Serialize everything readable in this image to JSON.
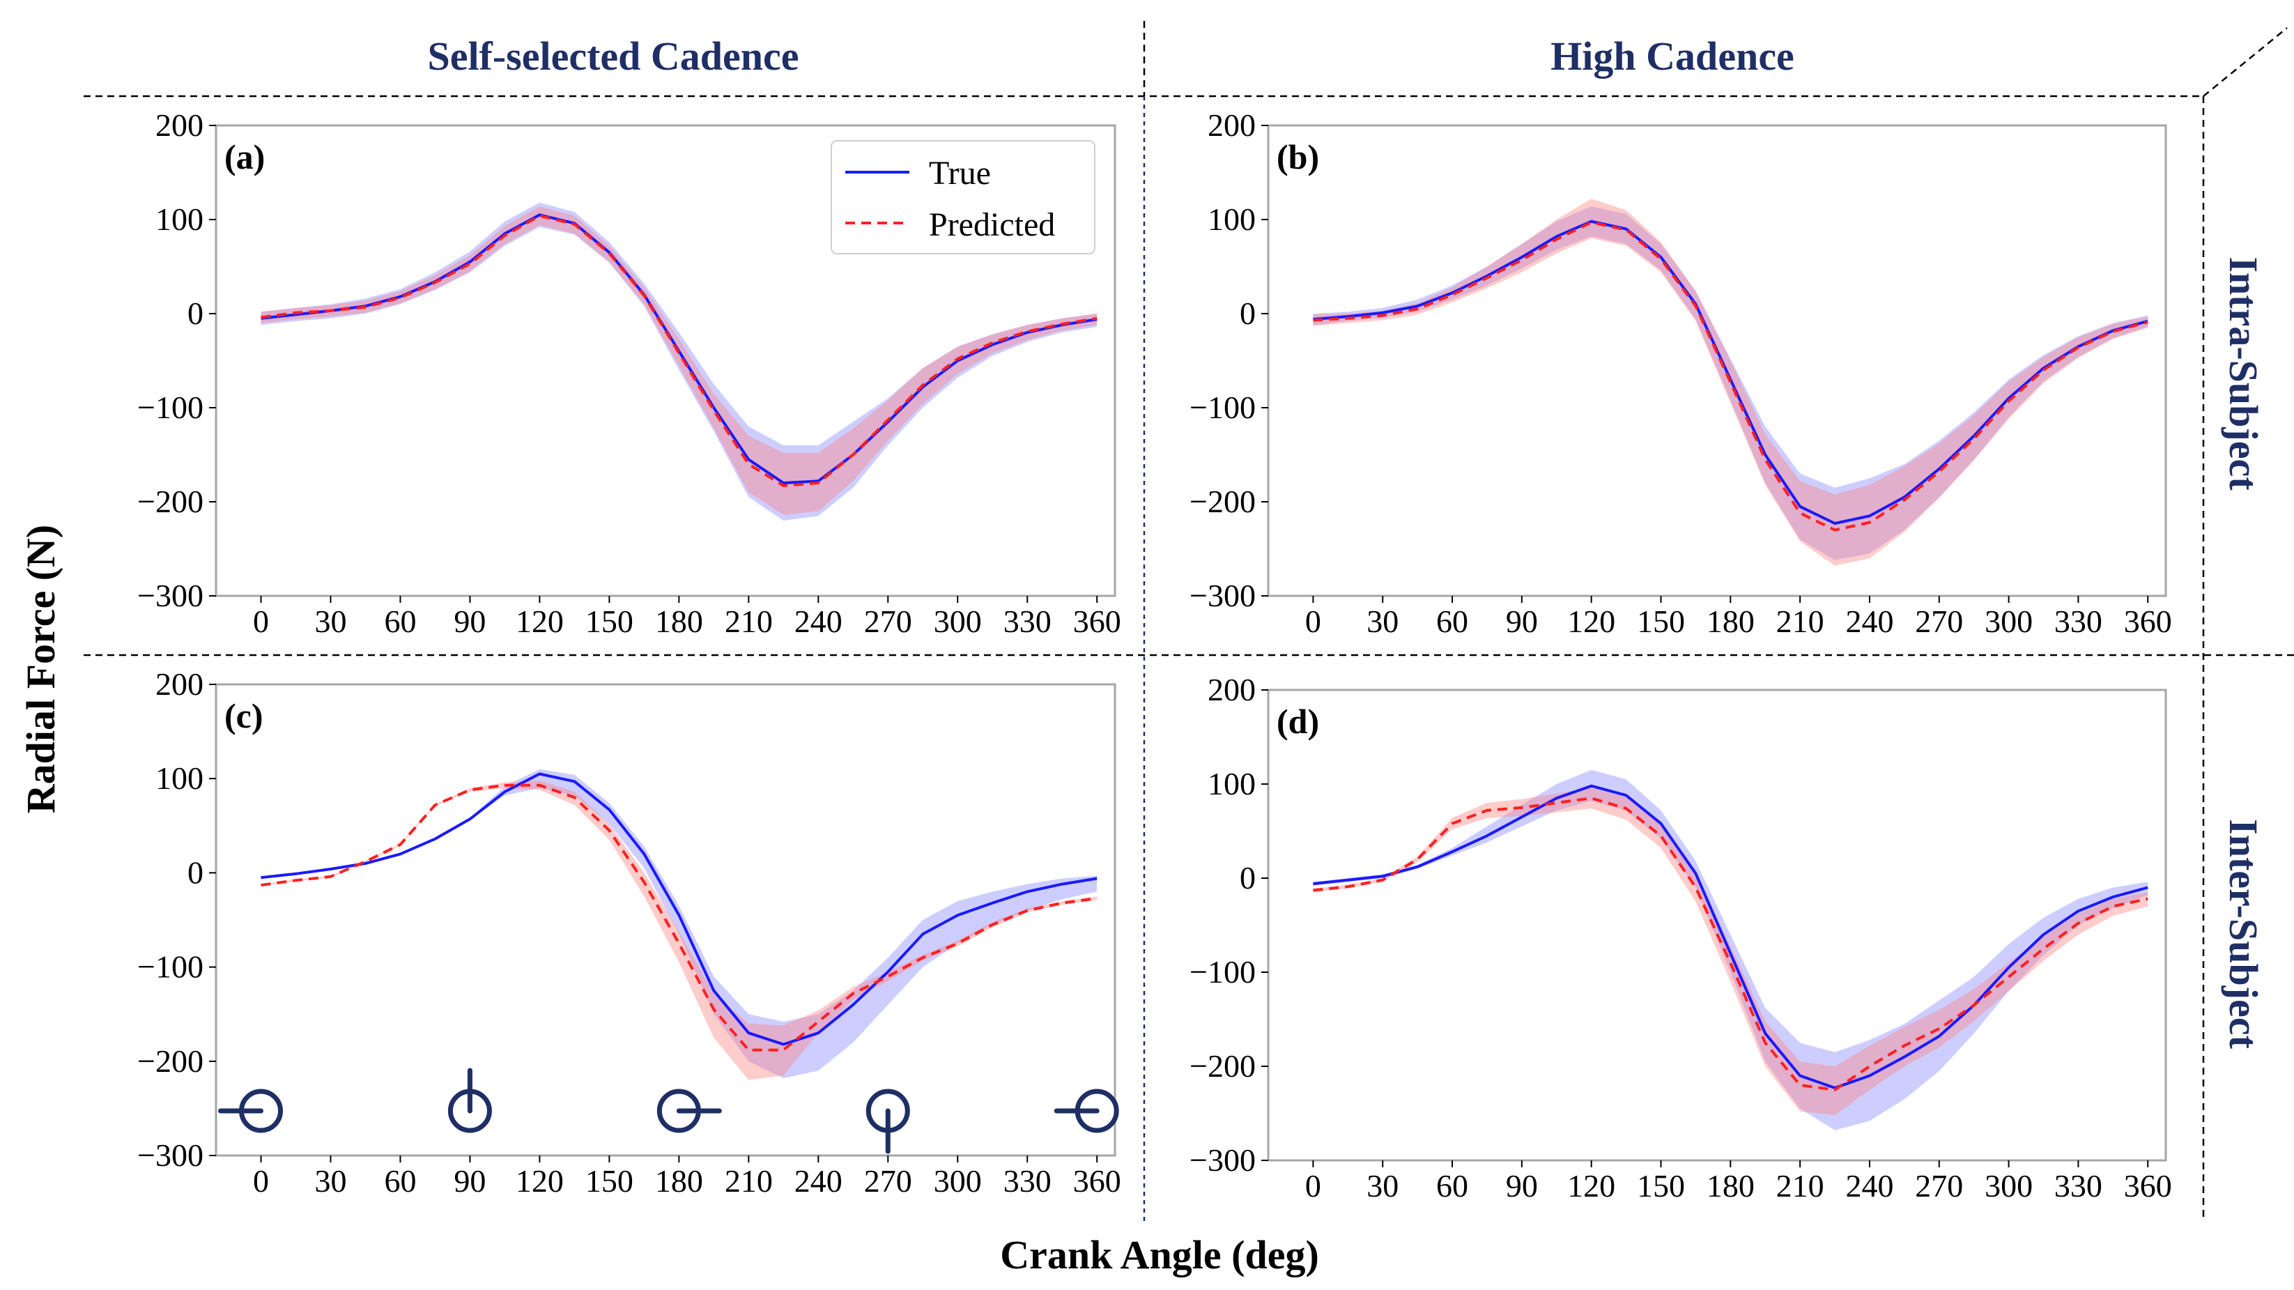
{
  "figure": {
    "col_headers": [
      "Self-selected Cadence",
      "High Cadence"
    ],
    "row_headers": [
      "Intra-Subject",
      "Inter-Subject"
    ],
    "ylabel": "Radial Force (N)",
    "xlabel": "Crank Angle (deg)",
    "legend": {
      "true_label": "True",
      "predicted_label": "Predicted"
    }
  },
  "colors": {
    "true": "#1a1aff",
    "predicted": "#ff2020",
    "true_band": "#6f72ff",
    "predicted_band": "#ff8080",
    "header": "#1f2f66"
  },
  "chart_data": [
    {
      "type": "line",
      "panel_label": "(a)",
      "xlim": [
        0,
        360
      ],
      "ylim": [
        -300,
        200
      ],
      "xticks": [
        0,
        30,
        60,
        90,
        120,
        150,
        180,
        210,
        240,
        270,
        300,
        330,
        360
      ],
      "yticks": [
        200,
        100,
        0,
        -100,
        -200,
        -300
      ],
      "legend_position": "top-right",
      "x": [
        0,
        15,
        30,
        45,
        60,
        75,
        90,
        105,
        120,
        135,
        150,
        165,
        180,
        195,
        210,
        225,
        240,
        255,
        270,
        285,
        300,
        315,
        330,
        345,
        360
      ],
      "series": [
        {
          "name": "True",
          "style": "solid",
          "values": [
            -5,
            -1,
            3,
            8,
            18,
            34,
            55,
            85,
            105,
            96,
            65,
            20,
            -40,
            -100,
            -155,
            -180,
            -178,
            -150,
            -115,
            -78,
            -50,
            -33,
            -20,
            -12,
            -6
          ],
          "band_lower": [
            -12,
            -8,
            -5,
            0,
            10,
            25,
            44,
            72,
            92,
            84,
            54,
            8,
            -60,
            -125,
            -195,
            -220,
            -215,
            -185,
            -140,
            -100,
            -68,
            -45,
            -30,
            -20,
            -14
          ],
          "band_upper": [
            2,
            6,
            10,
            16,
            26,
            44,
            66,
            98,
            118,
            108,
            76,
            32,
            -20,
            -75,
            -120,
            -140,
            -140,
            -115,
            -90,
            -58,
            -35,
            -22,
            -12,
            -5,
            0
          ]
        },
        {
          "name": "Predicted",
          "style": "dashed",
          "values": [
            -4,
            1,
            3,
            7,
            17,
            33,
            53,
            83,
            104,
            95,
            64,
            19,
            -42,
            -103,
            -160,
            -183,
            -180,
            -150,
            -113,
            -76,
            -48,
            -31,
            -19,
            -11,
            -5
          ],
          "band_lower": [
            -10,
            -6,
            -3,
            1,
            11,
            26,
            45,
            74,
            94,
            85,
            55,
            10,
            -56,
            -122,
            -190,
            -214,
            -210,
            -178,
            -135,
            -96,
            -64,
            -42,
            -28,
            -18,
            -12
          ],
          "band_upper": [
            2,
            6,
            9,
            14,
            24,
            41,
            62,
            93,
            114,
            104,
            72,
            28,
            -27,
            -85,
            -130,
            -148,
            -148,
            -122,
            -92,
            -58,
            -35,
            -22,
            -12,
            -5,
            0
          ]
        }
      ]
    },
    {
      "type": "line",
      "panel_label": "(b)",
      "xlim": [
        0,
        360
      ],
      "ylim": [
        -300,
        200
      ],
      "xticks": [
        0,
        30,
        60,
        90,
        120,
        150,
        180,
        210,
        240,
        270,
        300,
        330,
        360
      ],
      "yticks": [
        200,
        100,
        0,
        -100,
        -200,
        -300
      ],
      "x": [
        0,
        15,
        30,
        45,
        60,
        75,
        90,
        105,
        120,
        135,
        150,
        165,
        180,
        195,
        210,
        225,
        240,
        255,
        270,
        285,
        300,
        315,
        330,
        345,
        360
      ],
      "series": [
        {
          "name": "True",
          "style": "solid",
          "values": [
            -6,
            -3,
            1,
            8,
            22,
            40,
            60,
            82,
            98,
            90,
            60,
            10,
            -70,
            -150,
            -205,
            -223,
            -215,
            -195,
            -165,
            -130,
            -90,
            -58,
            -35,
            -18,
            -8
          ],
          "band_lower": [
            -12,
            -8,
            -4,
            2,
            15,
            30,
            48,
            68,
            82,
            74,
            46,
            -6,
            -92,
            -180,
            -240,
            -262,
            -255,
            -230,
            -195,
            -155,
            -110,
            -72,
            -46,
            -26,
            -14
          ],
          "band_upper": [
            0,
            2,
            6,
            15,
            30,
            50,
            74,
            98,
            114,
            106,
            74,
            24,
            -48,
            -120,
            -170,
            -185,
            -175,
            -160,
            -135,
            -105,
            -70,
            -44,
            -24,
            -10,
            -2
          ]
        },
        {
          "name": "Predicted",
          "style": "dashed",
          "values": [
            -7,
            -5,
            -2,
            5,
            20,
            38,
            57,
            79,
            97,
            89,
            58,
            8,
            -73,
            -155,
            -212,
            -230,
            -222,
            -198,
            -168,
            -133,
            -93,
            -60,
            -36,
            -19,
            -9
          ],
          "band_lower": [
            -13,
            -10,
            -7,
            -1,
            12,
            27,
            44,
            64,
            80,
            72,
            44,
            -8,
            -95,
            -182,
            -242,
            -268,
            -260,
            -232,
            -196,
            -156,
            -112,
            -74,
            -47,
            -27,
            -15
          ],
          "band_upper": [
            -1,
            0,
            3,
            11,
            28,
            50,
            74,
            100,
            122,
            110,
            76,
            24,
            -50,
            -128,
            -178,
            -192,
            -182,
            -162,
            -138,
            -108,
            -72,
            -46,
            -25,
            -11,
            -3
          ]
        }
      ]
    },
    {
      "type": "line",
      "panel_label": "(c)",
      "xlim": [
        0,
        360
      ],
      "ylim": [
        -300,
        200
      ],
      "xticks": [
        0,
        30,
        60,
        90,
        120,
        150,
        180,
        210,
        240,
        270,
        300,
        330,
        360
      ],
      "yticks": [
        200,
        100,
        0,
        -100,
        -200,
        -300
      ],
      "x": [
        0,
        15,
        30,
        45,
        60,
        75,
        90,
        105,
        120,
        135,
        150,
        165,
        180,
        195,
        210,
        225,
        240,
        255,
        270,
        285,
        300,
        315,
        330,
        345,
        360
      ],
      "series": [
        {
          "name": "True",
          "style": "solid",
          "values": [
            -5,
            -1,
            4,
            10,
            20,
            36,
            57,
            86,
            105,
            97,
            67,
            20,
            -45,
            -125,
            -170,
            -182,
            -170,
            -140,
            -105,
            -65,
            -45,
            -32,
            -20,
            -12,
            -6
          ],
          "band_lower": [
            -6,
            -2,
            3,
            9,
            19,
            35,
            56,
            82,
            90,
            82,
            52,
            5,
            -65,
            -150,
            -200,
            -218,
            -210,
            -180,
            -140,
            -100,
            -75,
            -55,
            -40,
            -28,
            -20
          ],
          "band_upper": [
            -4,
            0,
            5,
            11,
            21,
            37,
            58,
            92,
            110,
            104,
            74,
            28,
            -35,
            -110,
            -150,
            -158,
            -150,
            -125,
            -90,
            -50,
            -30,
            -20,
            -12,
            -6,
            -3
          ]
        },
        {
          "name": "Predicted",
          "style": "dashed",
          "values": [
            -13,
            -8,
            -4,
            12,
            30,
            72,
            88,
            93,
            93,
            80,
            45,
            -10,
            -75,
            -145,
            -188,
            -188,
            -158,
            -128,
            -110,
            -90,
            -75,
            -55,
            -40,
            -32,
            -27
          ],
          "band_lower": [
            -14,
            -9,
            -5,
            11,
            29,
            71,
            86,
            90,
            88,
            72,
            35,
            -25,
            -95,
            -175,
            -220,
            -215,
            -170,
            -135,
            -115,
            -93,
            -78,
            -58,
            -42,
            -34,
            -29
          ],
          "band_upper": [
            -12,
            -7,
            -3,
            13,
            31,
            73,
            90,
            96,
            98,
            86,
            52,
            0,
            -62,
            -128,
            -160,
            -162,
            -146,
            -121,
            -105,
            -87,
            -72,
            -52,
            -38,
            -30,
            -25
          ]
        }
      ],
      "annotations": [
        "crank-position-0",
        "crank-position-90",
        "crank-position-180",
        "crank-position-270",
        "crank-position-360"
      ]
    },
    {
      "type": "line",
      "panel_label": "(d)",
      "xlim": [
        0,
        360
      ],
      "ylim": [
        -300,
        200
      ],
      "xticks": [
        0,
        30,
        60,
        90,
        120,
        150,
        180,
        210,
        240,
        270,
        300,
        330,
        360
      ],
      "yticks": [
        200,
        100,
        0,
        -100,
        -200,
        -300
      ],
      "x": [
        0,
        15,
        30,
        45,
        60,
        75,
        90,
        105,
        120,
        135,
        150,
        165,
        180,
        195,
        210,
        225,
        240,
        255,
        270,
        285,
        300,
        315,
        330,
        345,
        360
      ],
      "series": [
        {
          "name": "True",
          "style": "solid",
          "values": [
            -6,
            -2,
            2,
            12,
            28,
            45,
            65,
            85,
            98,
            88,
            58,
            5,
            -80,
            -165,
            -210,
            -223,
            -210,
            -190,
            -168,
            -135,
            -95,
            -60,
            -35,
            -20,
            -10
          ],
          "band_lower": [
            -8,
            -4,
            0,
            10,
            24,
            38,
            55,
            72,
            82,
            72,
            42,
            -10,
            -100,
            -195,
            -245,
            -268,
            -258,
            -235,
            -205,
            -165,
            -120,
            -82,
            -50,
            -32,
            -18
          ],
          "band_upper": [
            -4,
            0,
            4,
            14,
            32,
            55,
            78,
            100,
            115,
            105,
            72,
            18,
            -60,
            -138,
            -175,
            -185,
            -172,
            -155,
            -130,
            -105,
            -70,
            -42,
            -22,
            -10,
            -4
          ]
        },
        {
          "name": "Predicted",
          "style": "dashed",
          "values": [
            -13,
            -9,
            -2,
            20,
            58,
            72,
            75,
            80,
            85,
            74,
            45,
            -10,
            -90,
            -175,
            -220,
            -225,
            -200,
            -178,
            -160,
            -135,
            -105,
            -75,
            -48,
            -30,
            -22
          ],
          "band_lower": [
            -15,
            -11,
            -4,
            17,
            52,
            64,
            66,
            70,
            74,
            62,
            32,
            -25,
            -110,
            -200,
            -248,
            -252,
            -225,
            -200,
            -180,
            -152,
            -120,
            -88,
            -60,
            -40,
            -30
          ],
          "band_upper": [
            -11,
            -7,
            0,
            23,
            64,
            80,
            84,
            90,
            96,
            86,
            58,
            5,
            -72,
            -152,
            -195,
            -200,
            -178,
            -158,
            -140,
            -118,
            -90,
            -62,
            -38,
            -22,
            -15
          ]
        }
      ]
    }
  ]
}
